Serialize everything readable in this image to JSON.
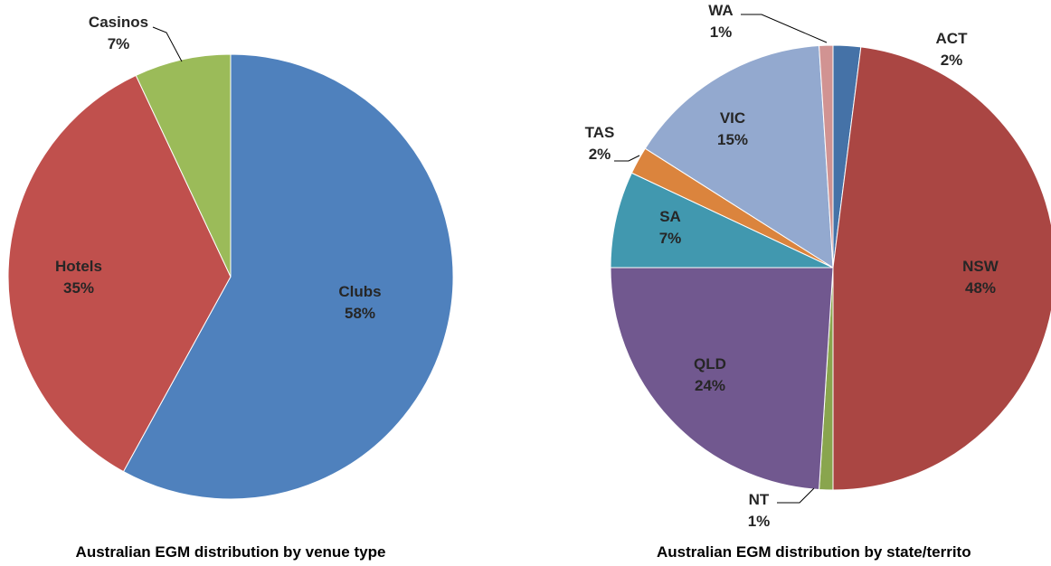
{
  "chart_data": [
    {
      "type": "pie",
      "title": "Australian EGM distribution by venue type",
      "slices": [
        {
          "label": "Clubs",
          "value": 58,
          "value_label": "58%",
          "color": "#4F81BD"
        },
        {
          "label": "Hotels",
          "value": 35,
          "value_label": "35%",
          "color": "#C0504D"
        },
        {
          "label": "Casinos",
          "value": 7,
          "value_label": "7%",
          "color": "#9BBB59"
        }
      ]
    },
    {
      "type": "pie",
      "title": "Australian EGM distribution by state/territo",
      "slices": [
        {
          "label": "ACT",
          "value": 2,
          "value_label": "2%",
          "color": "#4572A7"
        },
        {
          "label": "NSW",
          "value": 48,
          "value_label": "48%",
          "color": "#AA4643"
        },
        {
          "label": "NT",
          "value": 1,
          "value_label": "1%",
          "color": "#89A54E"
        },
        {
          "label": "QLD",
          "value": 24,
          "value_label": "24%",
          "color": "#71588F"
        },
        {
          "label": "SA",
          "value": 7,
          "value_label": "7%",
          "color": "#4198AF"
        },
        {
          "label": "TAS",
          "value": 2,
          "value_label": "2%",
          "color": "#DB843D"
        },
        {
          "label": "VIC",
          "value": 15,
          "value_label": "15%",
          "color": "#93A9CF"
        },
        {
          "label": "WA",
          "value": 1,
          "value_label": "1%",
          "color": "#D19392"
        }
      ]
    }
  ]
}
